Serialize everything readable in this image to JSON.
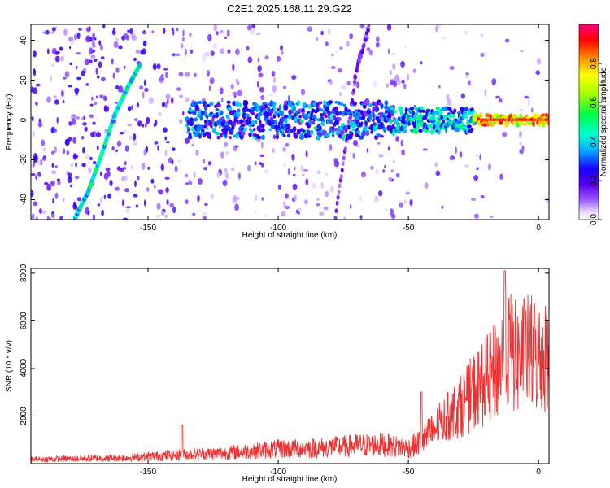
{
  "title": "C2E1.2025.168.11.29.G22",
  "chart_data": [
    {
      "type": "heatmap",
      "name": "spectrogram",
      "xlabel": "Height of straight line (km)",
      "ylabel": "Frequency (Hz)",
      "xlim": [
        -195,
        4
      ],
      "ylim": [
        -50,
        48
      ],
      "xticks": [
        -150,
        -100,
        -50,
        0
      ],
      "yticks": [
        -40,
        -20,
        0,
        20,
        40
      ],
      "colorbar": {
        "label": "Normalized spectral amplitude",
        "range": [
          0,
          1
        ],
        "ticks": [
          0.0,
          0.2,
          0.4,
          0.6,
          0.8
        ],
        "colors": [
          "#ffffff",
          "#e8d8ff",
          "#9b59ff",
          "#5500ee",
          "#1a00ff",
          "#00b4ff",
          "#00ffd0",
          "#00ff40",
          "#a0ff00",
          "#ffff00",
          "#ff9900",
          "#ff0000",
          "#ff0080"
        ]
      },
      "features": [
        {
          "name": "main-band",
          "x_start": -135,
          "x_end": 4,
          "freq_center": 0,
          "amplitude": [
            0.25,
            0.95
          ]
        },
        {
          "name": "diagonal-track",
          "points": [
            [
              -178,
              -49
            ],
            [
              -173,
              -36
            ],
            [
              -168,
              -18
            ],
            [
              -163,
              2
            ],
            [
              -158,
              16
            ],
            [
              -153,
              28
            ]
          ],
          "amplitude": 0.45
        },
        {
          "name": "faint-diagonal",
          "points": [
            [
              -78,
              -49
            ],
            [
              -70,
              25
            ],
            [
              -65,
              48
            ]
          ],
          "amplitude": 0.12
        }
      ]
    },
    {
      "type": "line",
      "name": "snr",
      "xlabel": "Height of straight line (km)",
      "ylabel": "SNR (10 * v/v)",
      "xlim": [
        -195,
        4
      ],
      "ylim": [
        0,
        8200
      ],
      "xticks": [
        -150,
        -100,
        -50,
        0
      ],
      "yticks": [
        2000,
        4000,
        6000,
        8000
      ],
      "color": "#f03030",
      "envelope": {
        "x": [
          -195,
          -180,
          -160,
          -140,
          -120,
          -100,
          -85,
          -70,
          -60,
          -50,
          -45,
          -40,
          -35,
          -30,
          -25,
          -20,
          -15,
          -12,
          -8,
          -5,
          0,
          4
        ],
        "y": [
          250,
          280,
          330,
          500,
          620,
          850,
          900,
          1050,
          1100,
          900,
          1300,
          1900,
          2500,
          3100,
          3900,
          4500,
          5200,
          6300,
          5600,
          6000,
          5900,
          5800
        ]
      },
      "peaks": [
        [
          -137,
          1600
        ],
        [
          -45,
          3000
        ],
        [
          -13,
          8100
        ]
      ]
    }
  ]
}
